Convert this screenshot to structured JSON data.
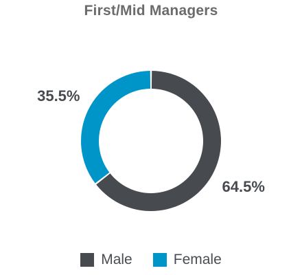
{
  "chart_data": {
    "type": "pie",
    "title": "First/Mid Managers",
    "categories": [
      "Male",
      "Female"
    ],
    "values": [
      64.5,
      35.5
    ],
    "value_labels": [
      "64.5%",
      "35.5%"
    ],
    "colors": [
      "#474b4f",
      "#0095c8"
    ],
    "legend": {
      "placement": "bottom",
      "items": [
        {
          "label": "Male",
          "color": "#474b4f"
        },
        {
          "label": "Female",
          "color": "#0095c8"
        }
      ]
    }
  }
}
